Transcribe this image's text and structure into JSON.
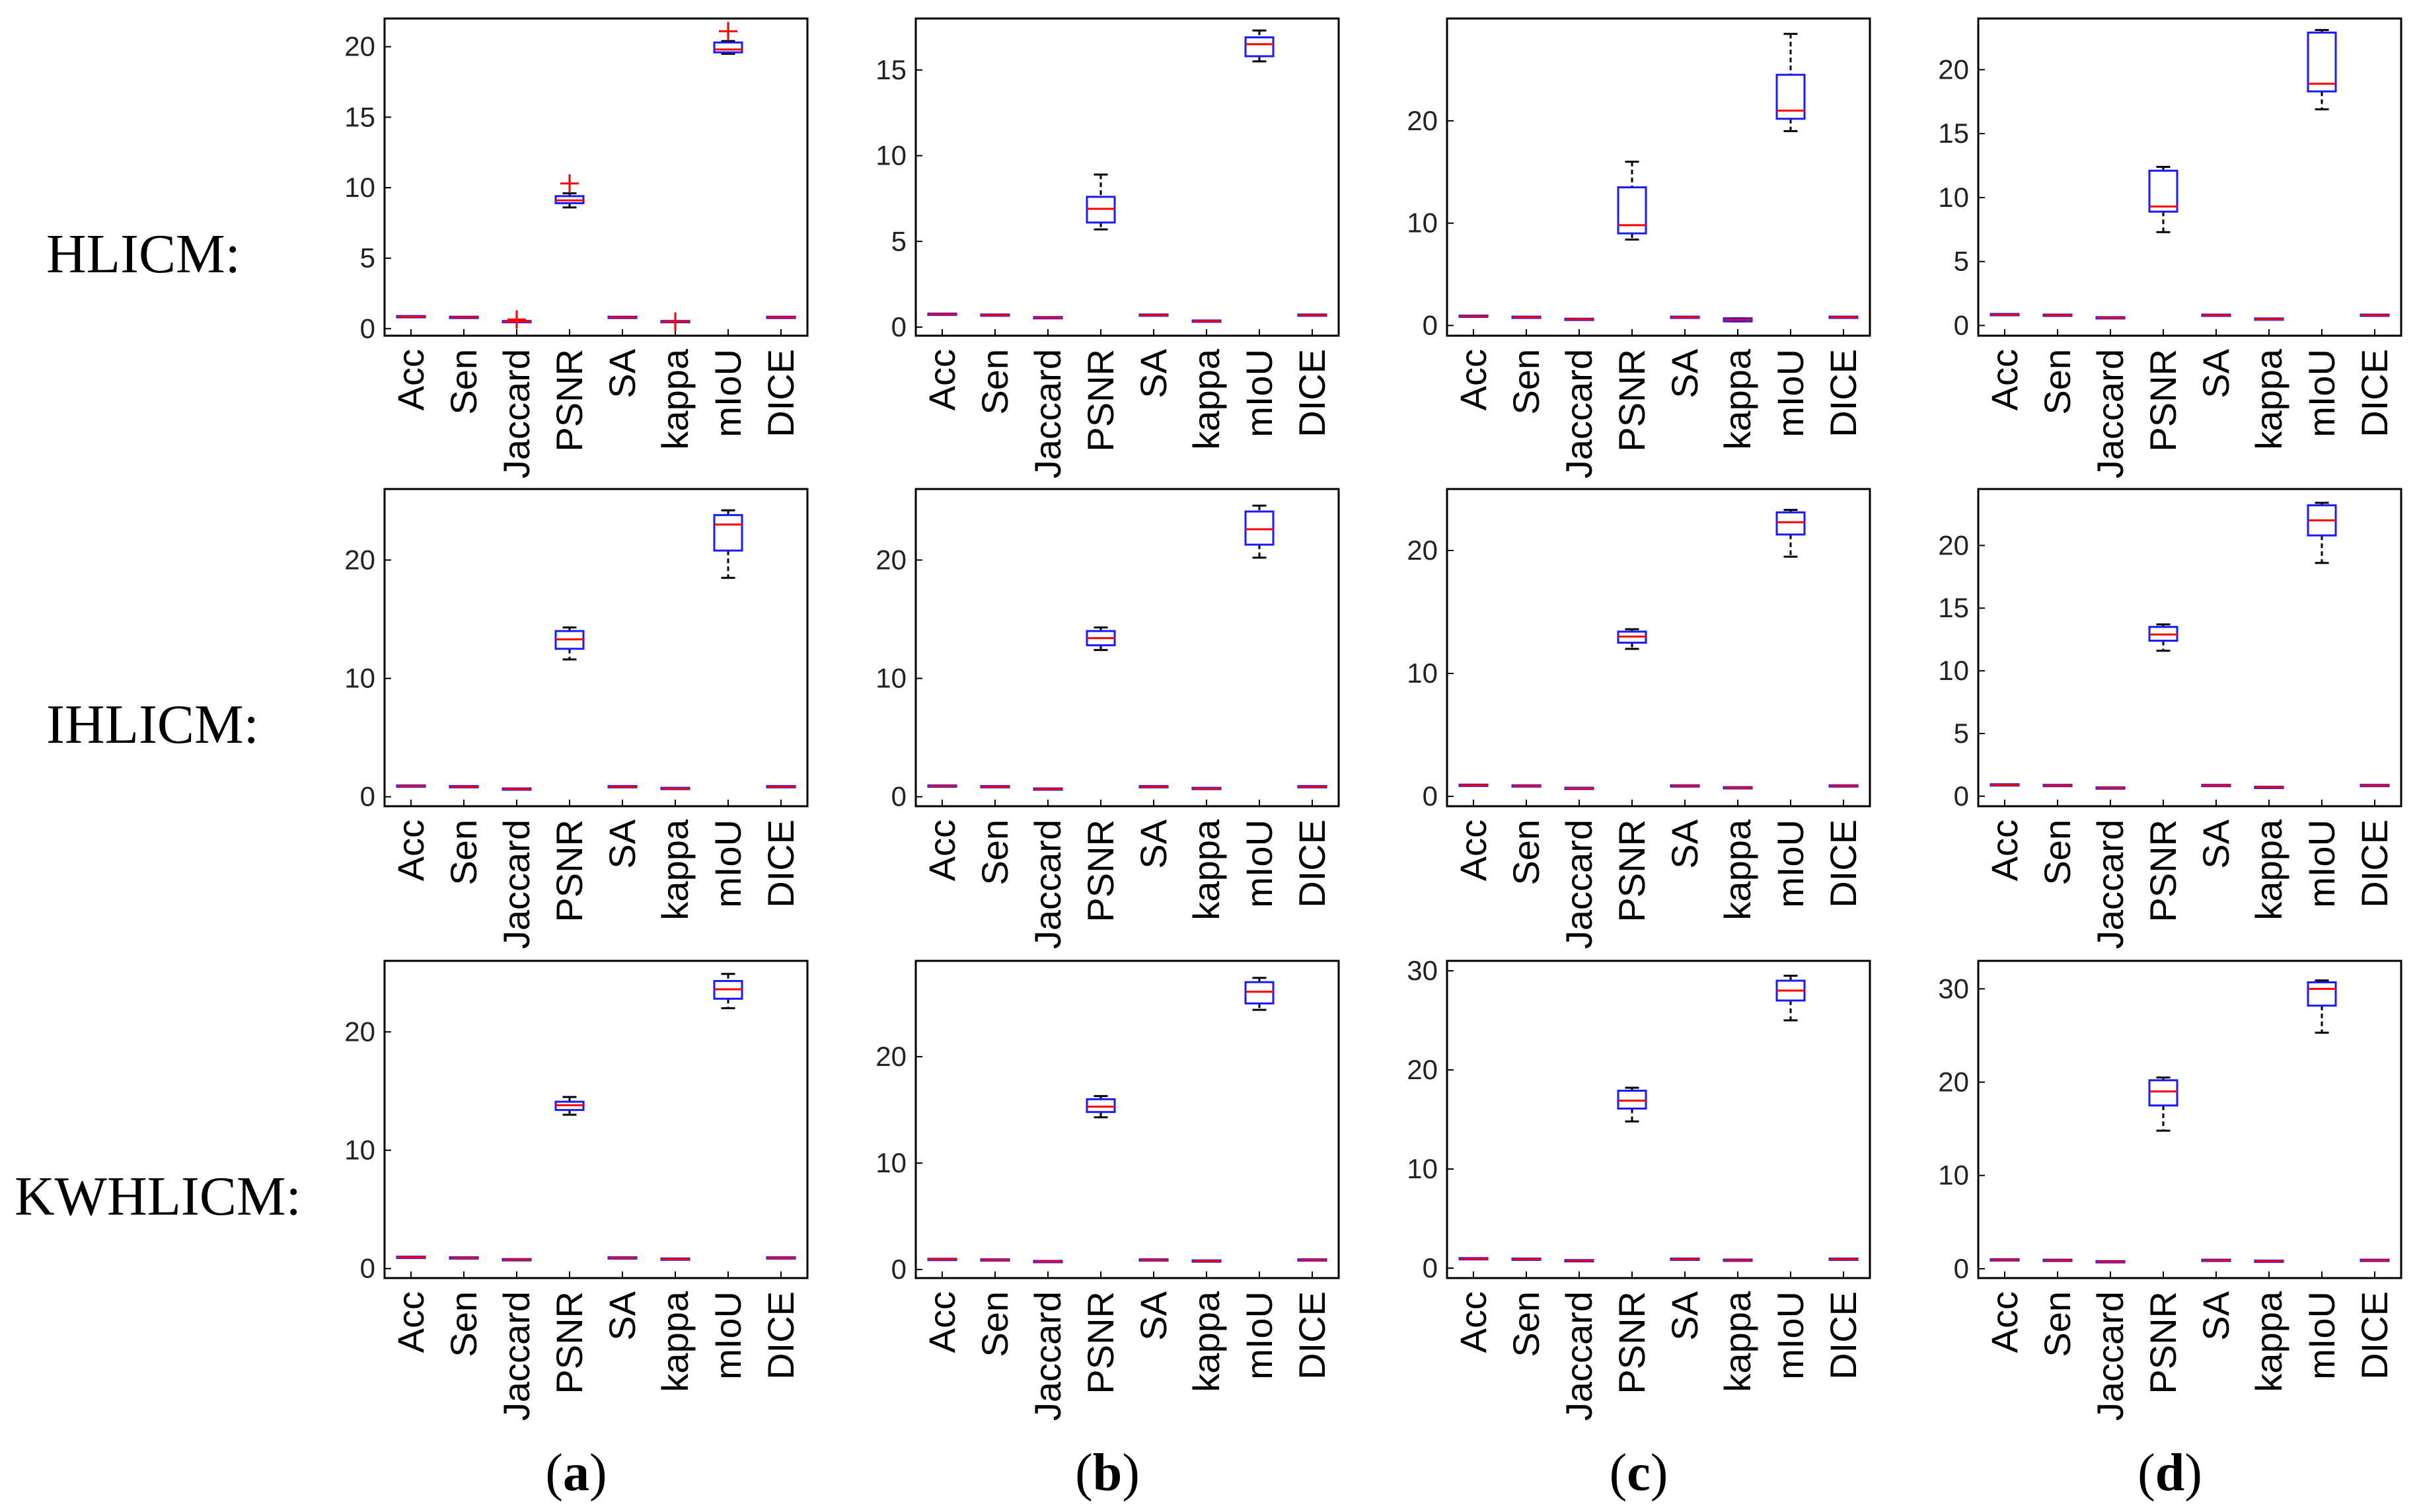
{
  "row_labels": [
    "HLICM:",
    "IHLICM:",
    "KWHLICM:"
  ],
  "column_captions": [
    "a",
    "b",
    "c",
    "d"
  ],
  "chart_data": [
    {
      "type": "box",
      "method": "HLICM",
      "panel": "a",
      "categories": [
        "Acc",
        "Sen",
        "Jaccard",
        "PSNR",
        "SA",
        "kappa",
        "mIoU",
        "DICE"
      ],
      "ylim": [
        -0.5,
        22
      ],
      "yticks": [
        0,
        5,
        10,
        15,
        20
      ],
      "boxes": [
        {
          "min": 0.85,
          "q1": 0.85,
          "median": 0.85,
          "q3": 0.85,
          "max": 0.85
        },
        {
          "min": 0.8,
          "q1": 0.8,
          "median": 0.8,
          "q3": 0.8,
          "max": 0.8
        },
        {
          "min": 0.5,
          "q1": 0.5,
          "median": 0.5,
          "q3": 0.5,
          "max": 0.5
        },
        {
          "min": 8.6,
          "q1": 8.9,
          "median": 9.1,
          "q3": 9.4,
          "max": 9.6
        },
        {
          "min": 0.8,
          "q1": 0.8,
          "median": 0.8,
          "q3": 0.8,
          "max": 0.8
        },
        {
          "min": 0.5,
          "q1": 0.5,
          "median": 0.5,
          "q3": 0.5,
          "max": 0.5
        },
        {
          "min": 19.5,
          "q1": 19.6,
          "median": 19.8,
          "q3": 20.3,
          "max": 20.4
        },
        {
          "min": 0.8,
          "q1": 0.8,
          "median": 0.8,
          "q3": 0.8,
          "max": 0.8
        }
      ],
      "outliers": [
        {
          "category": "Jaccard",
          "value": 0.65
        },
        {
          "category": "PSNR",
          "value": 10.3
        },
        {
          "category": "kappa",
          "value": 0.5
        },
        {
          "category": "mIoU",
          "value": 21.1
        }
      ]
    },
    {
      "type": "box",
      "method": "HLICM",
      "panel": "b",
      "categories": [
        "Acc",
        "Sen",
        "Jaccard",
        "PSNR",
        "SA",
        "kappa",
        "mIoU",
        "DICE"
      ],
      "ylim": [
        -0.5,
        18
      ],
      "yticks": [
        0,
        5,
        10,
        15
      ],
      "boxes": [
        {
          "min": 0.75,
          "q1": 0.75,
          "median": 0.75,
          "q3": 0.75,
          "max": 0.75
        },
        {
          "min": 0.7,
          "q1": 0.7,
          "median": 0.7,
          "q3": 0.7,
          "max": 0.7
        },
        {
          "min": 0.55,
          "q1": 0.55,
          "median": 0.55,
          "q3": 0.55,
          "max": 0.55
        },
        {
          "min": 5.7,
          "q1": 6.1,
          "median": 6.9,
          "q3": 7.6,
          "max": 8.9
        },
        {
          "min": 0.7,
          "q1": 0.7,
          "median": 0.7,
          "q3": 0.7,
          "max": 0.7
        },
        {
          "min": 0.35,
          "q1": 0.35,
          "median": 0.35,
          "q3": 0.35,
          "max": 0.35
        },
        {
          "min": 15.5,
          "q1": 15.8,
          "median": 16.5,
          "q3": 16.9,
          "max": 17.3
        },
        {
          "min": 0.7,
          "q1": 0.7,
          "median": 0.7,
          "q3": 0.7,
          "max": 0.7
        }
      ],
      "outliers": []
    },
    {
      "type": "box",
      "method": "HLICM",
      "panel": "c",
      "categories": [
        "Acc",
        "Sen",
        "Jaccard",
        "PSNR",
        "SA",
        "kappa",
        "mIoU",
        "DICE"
      ],
      "ylim": [
        -1,
        30
      ],
      "yticks": [
        0,
        10,
        20
      ],
      "boxes": [
        {
          "min": 0.9,
          "q1": 0.9,
          "median": 0.9,
          "q3": 0.9,
          "max": 0.9
        },
        {
          "min": 0.8,
          "q1": 0.8,
          "median": 0.8,
          "q3": 0.8,
          "max": 0.8
        },
        {
          "min": 0.6,
          "q1": 0.6,
          "median": 0.6,
          "q3": 0.6,
          "max": 0.6
        },
        {
          "min": 8.4,
          "q1": 9.0,
          "median": 9.8,
          "q3": 13.5,
          "max": 16.0
        },
        {
          "min": 0.8,
          "q1": 0.8,
          "median": 0.8,
          "q3": 0.8,
          "max": 0.8
        },
        {
          "min": 0.4,
          "q1": 0.4,
          "median": 0.55,
          "q3": 0.7,
          "max": 0.7
        },
        {
          "min": 19.0,
          "q1": 20.2,
          "median": 21.0,
          "q3": 24.5,
          "max": 28.5
        },
        {
          "min": 0.8,
          "q1": 0.8,
          "median": 0.8,
          "q3": 0.8,
          "max": 0.8
        }
      ],
      "outliers": []
    },
    {
      "type": "box",
      "method": "HLICM",
      "panel": "d",
      "categories": [
        "Acc",
        "Sen",
        "Jaccard",
        "PSNR",
        "SA",
        "kappa",
        "mIoU",
        "DICE"
      ],
      "ylim": [
        -0.8,
        24
      ],
      "yticks": [
        0,
        5,
        10,
        15,
        20
      ],
      "boxes": [
        {
          "min": 0.85,
          "q1": 0.85,
          "median": 0.85,
          "q3": 0.85,
          "max": 0.85
        },
        {
          "min": 0.8,
          "q1": 0.8,
          "median": 0.8,
          "q3": 0.8,
          "max": 0.8
        },
        {
          "min": 0.6,
          "q1": 0.6,
          "median": 0.6,
          "q3": 0.6,
          "max": 0.6
        },
        {
          "min": 7.3,
          "q1": 8.9,
          "median": 9.3,
          "q3": 12.1,
          "max": 12.4
        },
        {
          "min": 0.8,
          "q1": 0.8,
          "median": 0.8,
          "q3": 0.8,
          "max": 0.8
        },
        {
          "min": 0.5,
          "q1": 0.5,
          "median": 0.5,
          "q3": 0.5,
          "max": 0.5
        },
        {
          "min": 16.9,
          "q1": 18.3,
          "median": 18.9,
          "q3": 22.9,
          "max": 23.1
        },
        {
          "min": 0.8,
          "q1": 0.8,
          "median": 0.8,
          "q3": 0.8,
          "max": 0.8
        }
      ],
      "outliers": []
    },
    {
      "type": "box",
      "method": "IHLICM",
      "panel": "a",
      "categories": [
        "Acc",
        "Sen",
        "Jaccard",
        "PSNR",
        "SA",
        "kappa",
        "mIoU",
        "DICE"
      ],
      "ylim": [
        -0.8,
        26
      ],
      "yticks": [
        0,
        10,
        20
      ],
      "boxes": [
        {
          "min": 0.9,
          "q1": 0.9,
          "median": 0.9,
          "q3": 0.9,
          "max": 0.9
        },
        {
          "min": 0.85,
          "q1": 0.85,
          "median": 0.85,
          "q3": 0.85,
          "max": 0.85
        },
        {
          "min": 0.65,
          "q1": 0.65,
          "median": 0.65,
          "q3": 0.65,
          "max": 0.65
        },
        {
          "min": 11.6,
          "q1": 12.5,
          "median": 13.3,
          "q3": 14.0,
          "max": 14.3
        },
        {
          "min": 0.85,
          "q1": 0.85,
          "median": 0.85,
          "q3": 0.85,
          "max": 0.85
        },
        {
          "min": 0.7,
          "q1": 0.7,
          "median": 0.7,
          "q3": 0.7,
          "max": 0.7
        },
        {
          "min": 18.5,
          "q1": 20.8,
          "median": 23.0,
          "q3": 23.8,
          "max": 24.2
        },
        {
          "min": 0.85,
          "q1": 0.85,
          "median": 0.85,
          "q3": 0.85,
          "max": 0.85
        }
      ],
      "outliers": []
    },
    {
      "type": "box",
      "method": "IHLICM",
      "panel": "b",
      "categories": [
        "Acc",
        "Sen",
        "Jaccard",
        "PSNR",
        "SA",
        "kappa",
        "mIoU",
        "DICE"
      ],
      "ylim": [
        -0.8,
        26
      ],
      "yticks": [
        0,
        10,
        20
      ],
      "boxes": [
        {
          "min": 0.9,
          "q1": 0.9,
          "median": 0.9,
          "q3": 0.9,
          "max": 0.9
        },
        {
          "min": 0.85,
          "q1": 0.85,
          "median": 0.85,
          "q3": 0.85,
          "max": 0.85
        },
        {
          "min": 0.65,
          "q1": 0.65,
          "median": 0.65,
          "q3": 0.65,
          "max": 0.65
        },
        {
          "min": 12.4,
          "q1": 12.8,
          "median": 13.4,
          "q3": 14.0,
          "max": 14.3
        },
        {
          "min": 0.85,
          "q1": 0.85,
          "median": 0.85,
          "q3": 0.85,
          "max": 0.85
        },
        {
          "min": 0.7,
          "q1": 0.7,
          "median": 0.7,
          "q3": 0.7,
          "max": 0.7
        },
        {
          "min": 20.2,
          "q1": 21.3,
          "median": 22.6,
          "q3": 24.1,
          "max": 24.6
        },
        {
          "min": 0.85,
          "q1": 0.85,
          "median": 0.85,
          "q3": 0.85,
          "max": 0.85
        }
      ],
      "outliers": []
    },
    {
      "type": "box",
      "method": "IHLICM",
      "panel": "c",
      "categories": [
        "Acc",
        "Sen",
        "Jaccard",
        "PSNR",
        "SA",
        "kappa",
        "mIoU",
        "DICE"
      ],
      "ylim": [
        -0.8,
        25
      ],
      "yticks": [
        0,
        10,
        20
      ],
      "boxes": [
        {
          "min": 0.9,
          "q1": 0.9,
          "median": 0.9,
          "q3": 0.9,
          "max": 0.9
        },
        {
          "min": 0.85,
          "q1": 0.85,
          "median": 0.85,
          "q3": 0.85,
          "max": 0.85
        },
        {
          "min": 0.65,
          "q1": 0.65,
          "median": 0.65,
          "q3": 0.65,
          "max": 0.65
        },
        {
          "min": 12.0,
          "q1": 12.5,
          "median": 13.0,
          "q3": 13.4,
          "max": 13.6
        },
        {
          "min": 0.85,
          "q1": 0.85,
          "median": 0.85,
          "q3": 0.85,
          "max": 0.85
        },
        {
          "min": 0.7,
          "q1": 0.7,
          "median": 0.7,
          "q3": 0.7,
          "max": 0.7
        },
        {
          "min": 19.5,
          "q1": 21.3,
          "median": 22.3,
          "q3": 23.1,
          "max": 23.3
        },
        {
          "min": 0.85,
          "q1": 0.85,
          "median": 0.85,
          "q3": 0.85,
          "max": 0.85
        }
      ],
      "outliers": []
    },
    {
      "type": "box",
      "method": "IHLICM",
      "panel": "d",
      "categories": [
        "Acc",
        "Sen",
        "Jaccard",
        "PSNR",
        "SA",
        "kappa",
        "mIoU",
        "DICE"
      ],
      "ylim": [
        -0.8,
        24.5
      ],
      "yticks": [
        0,
        5,
        10,
        15,
        20
      ],
      "boxes": [
        {
          "min": 0.9,
          "q1": 0.9,
          "median": 0.9,
          "q3": 0.9,
          "max": 0.9
        },
        {
          "min": 0.85,
          "q1": 0.85,
          "median": 0.85,
          "q3": 0.85,
          "max": 0.85
        },
        {
          "min": 0.65,
          "q1": 0.65,
          "median": 0.65,
          "q3": 0.65,
          "max": 0.65
        },
        {
          "min": 11.6,
          "q1": 12.4,
          "median": 12.9,
          "q3": 13.5,
          "max": 13.7
        },
        {
          "min": 0.85,
          "q1": 0.85,
          "median": 0.85,
          "q3": 0.85,
          "max": 0.85
        },
        {
          "min": 0.7,
          "q1": 0.7,
          "median": 0.7,
          "q3": 0.7,
          "max": 0.7
        },
        {
          "min": 18.6,
          "q1": 20.8,
          "median": 22.0,
          "q3": 23.2,
          "max": 23.4
        },
        {
          "min": 0.85,
          "q1": 0.85,
          "median": 0.85,
          "q3": 0.85,
          "max": 0.85
        }
      ],
      "outliers": []
    },
    {
      "type": "box",
      "method": "KWHLICM",
      "panel": "a",
      "categories": [
        "Acc",
        "Sen",
        "Jaccard",
        "PSNR",
        "SA",
        "kappa",
        "mIoU",
        "DICE"
      ],
      "ylim": [
        -0.8,
        26
      ],
      "yticks": [
        0,
        10,
        20
      ],
      "boxes": [
        {
          "min": 0.95,
          "q1": 0.95,
          "median": 0.95,
          "q3": 0.95,
          "max": 0.95
        },
        {
          "min": 0.9,
          "q1": 0.9,
          "median": 0.9,
          "q3": 0.9,
          "max": 0.9
        },
        {
          "min": 0.75,
          "q1": 0.75,
          "median": 0.75,
          "q3": 0.75,
          "max": 0.75
        },
        {
          "min": 13.0,
          "q1": 13.4,
          "median": 13.8,
          "q3": 14.1,
          "max": 14.5
        },
        {
          "min": 0.9,
          "q1": 0.9,
          "median": 0.9,
          "q3": 0.9,
          "max": 0.9
        },
        {
          "min": 0.8,
          "q1": 0.8,
          "median": 0.8,
          "q3": 0.8,
          "max": 0.8
        },
        {
          "min": 22.0,
          "q1": 22.8,
          "median": 23.6,
          "q3": 24.3,
          "max": 24.9
        },
        {
          "min": 0.9,
          "q1": 0.9,
          "median": 0.9,
          "q3": 0.9,
          "max": 0.9
        }
      ],
      "outliers": []
    },
    {
      "type": "box",
      "method": "KWHLICM",
      "panel": "b",
      "categories": [
        "Acc",
        "Sen",
        "Jaccard",
        "PSNR",
        "SA",
        "kappa",
        "mIoU",
        "DICE"
      ],
      "ylim": [
        -0.8,
        29
      ],
      "yticks": [
        0,
        10,
        20
      ],
      "boxes": [
        {
          "min": 0.95,
          "q1": 0.95,
          "median": 0.95,
          "q3": 0.95,
          "max": 0.95
        },
        {
          "min": 0.9,
          "q1": 0.9,
          "median": 0.9,
          "q3": 0.9,
          "max": 0.9
        },
        {
          "min": 0.75,
          "q1": 0.75,
          "median": 0.75,
          "q3": 0.75,
          "max": 0.75
        },
        {
          "min": 14.3,
          "q1": 14.8,
          "median": 15.3,
          "q3": 16.0,
          "max": 16.3
        },
        {
          "min": 0.9,
          "q1": 0.9,
          "median": 0.9,
          "q3": 0.9,
          "max": 0.9
        },
        {
          "min": 0.8,
          "q1": 0.8,
          "median": 0.8,
          "q3": 0.8,
          "max": 0.8
        },
        {
          "min": 24.4,
          "q1": 25.0,
          "median": 26.1,
          "q3": 27.0,
          "max": 27.4
        },
        {
          "min": 0.9,
          "q1": 0.9,
          "median": 0.9,
          "q3": 0.9,
          "max": 0.9
        }
      ],
      "outliers": []
    },
    {
      "type": "box",
      "method": "KWHLICM",
      "panel": "c",
      "categories": [
        "Acc",
        "Sen",
        "Jaccard",
        "PSNR",
        "SA",
        "kappa",
        "mIoU",
        "DICE"
      ],
      "ylim": [
        -1,
        31
      ],
      "yticks": [
        0,
        10,
        20,
        30
      ],
      "boxes": [
        {
          "min": 0.95,
          "q1": 0.95,
          "median": 0.95,
          "q3": 0.95,
          "max": 0.95
        },
        {
          "min": 0.9,
          "q1": 0.9,
          "median": 0.9,
          "q3": 0.9,
          "max": 0.9
        },
        {
          "min": 0.75,
          "q1": 0.75,
          "median": 0.75,
          "q3": 0.75,
          "max": 0.75
        },
        {
          "min": 14.8,
          "q1": 16.1,
          "median": 16.9,
          "q3": 17.9,
          "max": 18.2
        },
        {
          "min": 0.9,
          "q1": 0.9,
          "median": 0.9,
          "q3": 0.9,
          "max": 0.9
        },
        {
          "min": 0.8,
          "q1": 0.8,
          "median": 0.8,
          "q3": 0.8,
          "max": 0.8
        },
        {
          "min": 25.0,
          "q1": 27.0,
          "median": 28.0,
          "q3": 29.0,
          "max": 29.5
        },
        {
          "min": 0.9,
          "q1": 0.9,
          "median": 0.9,
          "q3": 0.9,
          "max": 0.9
        }
      ],
      "outliers": []
    },
    {
      "type": "box",
      "method": "KWHLICM",
      "panel": "d",
      "categories": [
        "Acc",
        "Sen",
        "Jaccard",
        "PSNR",
        "SA",
        "kappa",
        "mIoU",
        "DICE"
      ],
      "ylim": [
        -1,
        33
      ],
      "yticks": [
        0,
        10,
        20,
        30
      ],
      "boxes": [
        {
          "min": 0.95,
          "q1": 0.95,
          "median": 0.95,
          "q3": 0.95,
          "max": 0.95
        },
        {
          "min": 0.9,
          "q1": 0.9,
          "median": 0.9,
          "q3": 0.9,
          "max": 0.9
        },
        {
          "min": 0.75,
          "q1": 0.75,
          "median": 0.75,
          "q3": 0.75,
          "max": 0.75
        },
        {
          "min": 14.8,
          "q1": 17.5,
          "median": 19.0,
          "q3": 20.2,
          "max": 20.5
        },
        {
          "min": 0.9,
          "q1": 0.9,
          "median": 0.9,
          "q3": 0.9,
          "max": 0.9
        },
        {
          "min": 0.8,
          "q1": 0.8,
          "median": 0.8,
          "q3": 0.8,
          "max": 0.8
        },
        {
          "min": 25.3,
          "q1": 28.2,
          "median": 30.0,
          "q3": 30.7,
          "max": 30.9
        },
        {
          "min": 0.9,
          "q1": 0.9,
          "median": 0.9,
          "q3": 0.9,
          "max": 0.9
        }
      ],
      "outliers": []
    }
  ]
}
